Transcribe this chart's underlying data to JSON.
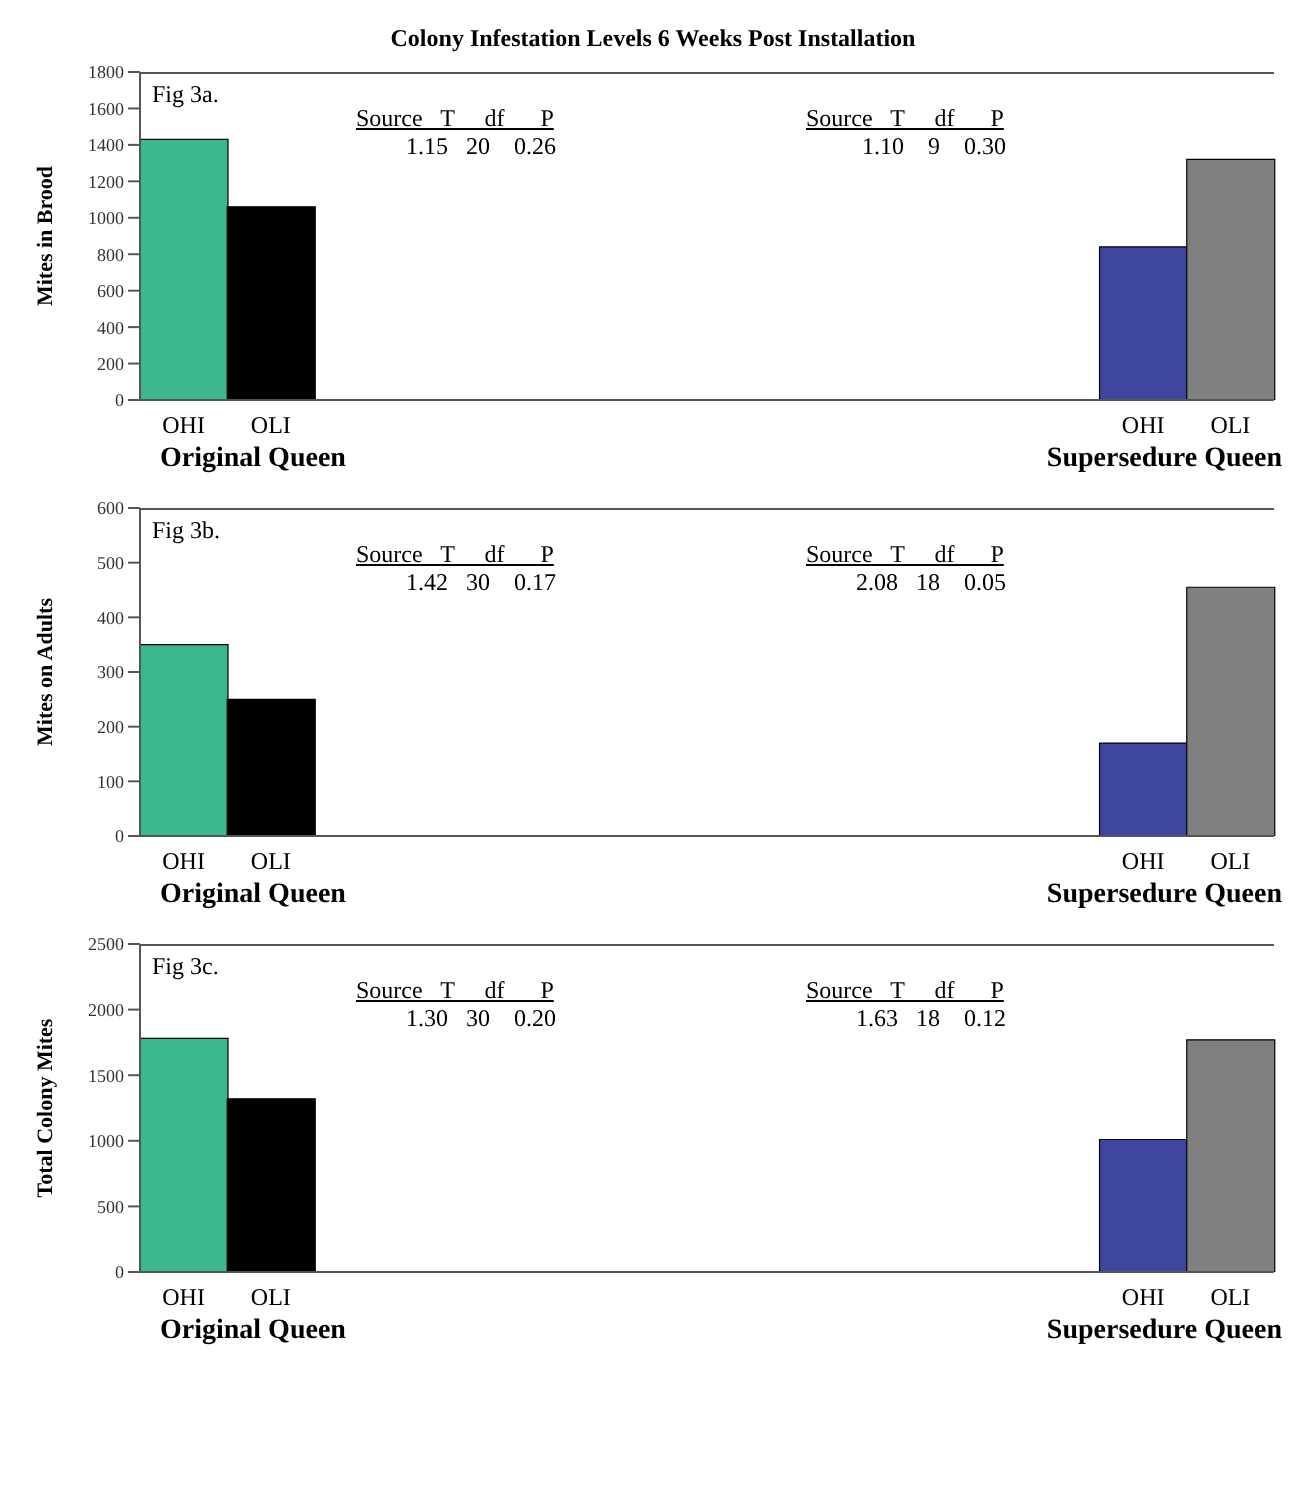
{
  "chart_data": [
    {
      "type": "bar",
      "title": "Colony Infestation Levels 6 Weeks Post Installation",
      "ylabel": "Mites in Brood",
      "categories": [
        "OHI",
        "OLI",
        null,
        null,
        null,
        null,
        null,
        null,
        null,
        null,
        null,
        "OHI",
        "OLI"
      ],
      "values": [
        1430,
        1060,
        null,
        null,
        null,
        null,
        null,
        null,
        null,
        null,
        null,
        840,
        1320
      ],
      "colors": [
        "#3cb98c",
        "#000000",
        null,
        null,
        null,
        null,
        null,
        null,
        null,
        null,
        null,
        "#3e46a0",
        "#808080"
      ],
      "ylim": [
        0,
        1800
      ],
      "yticks": [
        0,
        200,
        400,
        600,
        800,
        1000,
        1200,
        1400,
        1600,
        1800
      ],
      "annotations": [
        "Fig 3a.",
        "Source   T     df      P",
        "1.15   20    0.26",
        "Source   T     df      P",
        "1.10    9    0.30",
        "Original Queen",
        "Supersedure Queen"
      ]
    },
    {
      "type": "bar",
      "ylabel": "Mites on Adults",
      "categories": [
        "OHI",
        "OLI",
        null,
        null,
        null,
        null,
        null,
        null,
        null,
        null,
        null,
        "OHI",
        "OLI"
      ],
      "values": [
        350,
        250,
        null,
        null,
        null,
        null,
        null,
        null,
        null,
        null,
        null,
        170,
        455
      ],
      "colors": [
        "#3cb98c",
        "#000000",
        null,
        null,
        null,
        null,
        null,
        null,
        null,
        null,
        null,
        "#3e46a0",
        "#808080"
      ],
      "ylim": [
        0,
        600
      ],
      "yticks": [
        0,
        100,
        200,
        300,
        400,
        500,
        600
      ],
      "annotations": [
        "Fig 3b.",
        "Source   T     df      P",
        "1.42   30    0.17",
        "Source   T     df      P",
        "2.08   18    0.05",
        "Original Queen",
        "Supersedure Queen"
      ]
    },
    {
      "type": "bar",
      "ylabel": "Total Colony Mites",
      "categories": [
        "OHI",
        "OLI",
        null,
        null,
        null,
        null,
        null,
        null,
        null,
        null,
        null,
        "OHI",
        "OLI"
      ],
      "values": [
        1780,
        1320,
        null,
        null,
        null,
        null,
        null,
        null,
        null,
        null,
        null,
        1010,
        1770
      ],
      "colors": [
        "#3cb98c",
        "#000000",
        null,
        null,
        null,
        null,
        null,
        null,
        null,
        null,
        null,
        "#3e46a0",
        "#808080"
      ],
      "ylim": [
        0,
        2500
      ],
      "yticks": [
        0,
        500,
        1000,
        1500,
        2000,
        2500
      ],
      "annotations": [
        "Fig 3c.",
        "Source   T     df      P",
        "1.30   30    0.20",
        "Source   T     df      P",
        "1.63   18    0.12",
        "Original Queen",
        "Supersedure Queen"
      ]
    }
  ]
}
